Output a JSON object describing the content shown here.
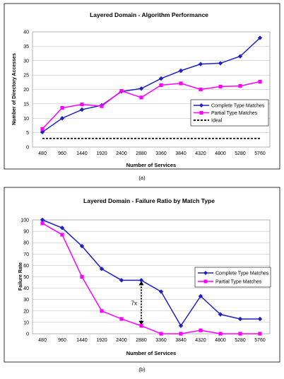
{
  "chart_data": [
    {
      "type": "line",
      "title": "Layered Domain - Algorithm Performance",
      "xlabel": "Number of Services",
      "ylabel": "Number of Directory Accesses",
      "caption": "(a)",
      "categories": [
        "480",
        "960",
        "1440",
        "1920",
        "2400",
        "2880",
        "3360",
        "3840",
        "4320",
        "4800",
        "5280",
        "5760"
      ],
      "ylim": [
        0,
        40
      ],
      "yticks": [
        "0",
        "5",
        "10",
        "15",
        "20",
        "25",
        "30",
        "35",
        "40"
      ],
      "grid": true,
      "legend_position": "right",
      "series": [
        {
          "name": "Complete Type Matches",
          "color": "#1f1fc8",
          "marker": "diamond",
          "values": [
            5.2,
            10.0,
            13.0,
            14.5,
            19.3,
            20.3,
            23.8,
            26.5,
            28.8,
            29.1,
            31.5,
            37.9
          ]
        },
        {
          "name": "Partial Type Matches",
          "color": "#ff00ff",
          "marker": "square",
          "values": [
            6.3,
            13.6,
            14.8,
            14.2,
            19.5,
            17.2,
            21.5,
            22.1,
            20.0,
            21.0,
            21.2,
            22.7
          ]
        },
        {
          "name": "Ideal",
          "color": "#000000",
          "dash": true,
          "values": [
            3,
            3,
            3,
            3,
            3,
            3,
            3,
            3,
            3,
            3,
            3,
            3
          ]
        }
      ]
    },
    {
      "type": "line",
      "title": "Layered Domain - Failure Ratio by Match Type",
      "xlabel": "Number of Services",
      "ylabel": "Failure Rate",
      "caption": "(b)",
      "annotation": "7x",
      "annotation_span": {
        "category": "2880",
        "from": 7,
        "to": 47
      },
      "categories": [
        "480",
        "960",
        "1440",
        "1920",
        "2400",
        "2880",
        "3360",
        "3840",
        "4320",
        "4800",
        "5280",
        "5760"
      ],
      "ylim": [
        0,
        100
      ],
      "yticks": [
        "0",
        "10",
        "20",
        "30",
        "40",
        "50",
        "60",
        "70",
        "80",
        "90",
        "100"
      ],
      "grid": true,
      "legend_position": "right",
      "series": [
        {
          "name": "Complete Type Matches",
          "color": "#1f1fc8",
          "marker": "diamond",
          "values": [
            100,
            93,
            77,
            57,
            47,
            47,
            37,
            7,
            33,
            17,
            13,
            13
          ]
        },
        {
          "name": "Partial Type Matches",
          "color": "#ff00ff",
          "marker": "square",
          "values": [
            97,
            87,
            50,
            20,
            13,
            7,
            0,
            0,
            3,
            0,
            0,
            0
          ]
        }
      ]
    }
  ]
}
